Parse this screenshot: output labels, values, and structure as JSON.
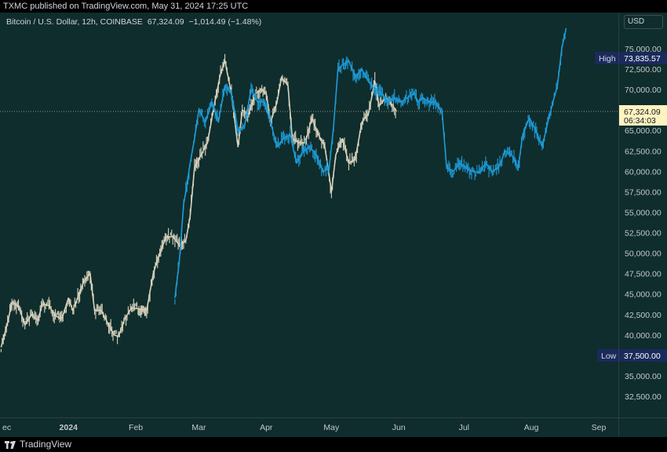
{
  "header": {
    "published": "TXMC published on TradingView.com, May 31, 2024 17:25 UTC"
  },
  "legend": {
    "symbol": "Bitcoin / U.S. Dollar, 12h, COINBASE",
    "last": "67,324.09",
    "change": "−1,014.49 (−1.48%)"
  },
  "currency": "USD",
  "footer": {
    "brand": "TradingView"
  },
  "colors": {
    "background": "#0f2d2c",
    "price_series": "#d8d2bd",
    "overlay_series": "#1e9bd7",
    "axis_badge": "#1a2a5c",
    "last_price_badge": "#fff3c0"
  },
  "chart_data": {
    "type": "line",
    "ylim": [
      30000,
      77500
    ],
    "y_scale": "linear",
    "grid": false,
    "y_ticks": [
      "75,000.00",
      "72,500.00",
      "70,000.00",
      "67,500.00",
      "65,000.00",
      "62,500.00",
      "60,000.00",
      "57,500.00",
      "55,000.00",
      "52,500.00",
      "50,000.00",
      "47,500.00",
      "45,000.00",
      "42,500.00",
      "40,000.00",
      "37,500.00",
      "35,000.00",
      "32,500.00"
    ],
    "x_ticks": [
      {
        "label": "ec",
        "date": "2023-12-01"
      },
      {
        "label": "2024",
        "date": "2024-01-01",
        "bold": true
      },
      {
        "label": "Feb",
        "date": "2024-02-01"
      },
      {
        "label": "Mar",
        "date": "2024-03-01"
      },
      {
        "label": "Apr",
        "date": "2024-04-01"
      },
      {
        "label": "May",
        "date": "2024-05-01"
      },
      {
        "label": "Jun",
        "date": "2024-06-01"
      },
      {
        "label": "Jul",
        "date": "2024-07-01"
      },
      {
        "label": "Aug",
        "date": "2024-08-01"
      },
      {
        "label": "Sep",
        "date": "2024-09-01"
      }
    ],
    "markers": {
      "high": {
        "label": "High",
        "value": "73,835.57"
      },
      "low": {
        "label": "Low",
        "value": "37,500.00"
      },
      "last": {
        "value": "67,324.09",
        "countdown": "06:34:03"
      }
    },
    "series": [
      {
        "role": "price",
        "points": [
          [
            "2023-12-01",
            38500
          ],
          [
            "2023-12-04",
            41500
          ],
          [
            "2023-12-06",
            44000
          ],
          [
            "2023-12-09",
            43500
          ],
          [
            "2023-12-12",
            41200
          ],
          [
            "2023-12-15",
            42500
          ],
          [
            "2023-12-18",
            41800
          ],
          [
            "2023-12-20",
            43800
          ],
          [
            "2023-12-23",
            43600
          ],
          [
            "2023-12-26",
            42300
          ],
          [
            "2023-12-29",
            42000
          ],
          [
            "2024-01-01",
            44500
          ],
          [
            "2024-01-03",
            43000
          ],
          [
            "2024-01-08",
            46500
          ],
          [
            "2024-01-11",
            47500
          ],
          [
            "2024-01-13",
            43000
          ],
          [
            "2024-01-16",
            43000
          ],
          [
            "2024-01-19",
            41500
          ],
          [
            "2024-01-22",
            40000
          ],
          [
            "2024-01-24",
            39800
          ],
          [
            "2024-01-27",
            42000
          ],
          [
            "2024-01-30",
            43300
          ],
          [
            "2024-02-02",
            43200
          ],
          [
            "2024-02-06",
            43000
          ],
          [
            "2024-02-09",
            47500
          ],
          [
            "2024-02-12",
            50000
          ],
          [
            "2024-02-15",
            52000
          ],
          [
            "2024-02-18",
            52000
          ],
          [
            "2024-02-21",
            51000
          ],
          [
            "2024-02-24",
            51500
          ],
          [
            "2024-02-26",
            54500
          ],
          [
            "2024-02-28",
            60500
          ],
          [
            "2024-03-02",
            62000
          ],
          [
            "2024-03-05",
            63500
          ],
          [
            "2024-03-08",
            68000
          ],
          [
            "2024-03-11",
            72000
          ],
          [
            "2024-03-13",
            73500
          ],
          [
            "2024-03-16",
            69500
          ],
          [
            "2024-03-19",
            63000
          ],
          [
            "2024-03-21",
            67500
          ],
          [
            "2024-03-24",
            67000
          ],
          [
            "2024-03-27",
            69500
          ],
          [
            "2024-03-30",
            70000
          ],
          [
            "2024-04-01",
            69500
          ],
          [
            "2024-04-03",
            66000
          ],
          [
            "2024-04-06",
            68500
          ],
          [
            "2024-04-08",
            71500
          ],
          [
            "2024-04-11",
            70500
          ],
          [
            "2024-04-13",
            64000
          ],
          [
            "2024-04-16",
            63500
          ],
          [
            "2024-04-19",
            63500
          ],
          [
            "2024-04-22",
            66500
          ],
          [
            "2024-04-25",
            64500
          ],
          [
            "2024-04-28",
            63000
          ],
          [
            "2024-05-01",
            57500
          ],
          [
            "2024-05-03",
            62000
          ],
          [
            "2024-05-06",
            64000
          ],
          [
            "2024-05-09",
            61000
          ],
          [
            "2024-05-12",
            61500
          ],
          [
            "2024-05-15",
            66000
          ],
          [
            "2024-05-18",
            67000
          ],
          [
            "2024-05-21",
            71000
          ],
          [
            "2024-05-23",
            68000
          ],
          [
            "2024-05-26",
            69000
          ],
          [
            "2024-05-28",
            68500
          ],
          [
            "2024-05-31",
            67324
          ]
        ]
      },
      {
        "role": "overlay",
        "points": [
          [
            "2024-02-19",
            44500
          ],
          [
            "2024-02-21",
            49000
          ],
          [
            "2024-02-23",
            56000
          ],
          [
            "2024-02-24",
            57500
          ],
          [
            "2024-02-26",
            61000
          ],
          [
            "2024-02-28",
            64000
          ],
          [
            "2024-03-01",
            67500
          ],
          [
            "2024-03-04",
            66000
          ],
          [
            "2024-03-07",
            68500
          ],
          [
            "2024-03-10",
            66000
          ],
          [
            "2024-03-13",
            70500
          ],
          [
            "2024-03-16",
            69500
          ],
          [
            "2024-03-19",
            65000
          ],
          [
            "2024-03-22",
            65500
          ],
          [
            "2024-03-25",
            70000
          ],
          [
            "2024-03-28",
            68500
          ],
          [
            "2024-03-31",
            68500
          ],
          [
            "2024-04-03",
            66000
          ],
          [
            "2024-04-06",
            63000
          ],
          [
            "2024-04-09",
            64000
          ],
          [
            "2024-04-12",
            64500
          ],
          [
            "2024-04-15",
            61000
          ],
          [
            "2024-04-18",
            62500
          ],
          [
            "2024-04-21",
            63000
          ],
          [
            "2024-04-24",
            62000
          ],
          [
            "2024-04-27",
            60000
          ],
          [
            "2024-04-30",
            60500
          ],
          [
            "2024-05-02",
            65500
          ],
          [
            "2024-05-04",
            72500
          ],
          [
            "2024-05-06",
            73000
          ],
          [
            "2024-05-09",
            73500
          ],
          [
            "2024-05-12",
            71500
          ],
          [
            "2024-05-15",
            72500
          ],
          [
            "2024-05-18",
            71000
          ],
          [
            "2024-05-21",
            70000
          ],
          [
            "2024-05-24",
            69500
          ],
          [
            "2024-05-27",
            68500
          ],
          [
            "2024-05-30",
            69000
          ],
          [
            "2024-06-02",
            68500
          ],
          [
            "2024-06-05",
            69000
          ],
          [
            "2024-06-08",
            69500
          ],
          [
            "2024-06-10",
            68500
          ],
          [
            "2024-06-12",
            69000
          ],
          [
            "2024-06-15",
            68500
          ],
          [
            "2024-06-18",
            68500
          ],
          [
            "2024-06-21",
            67000
          ],
          [
            "2024-06-23",
            60500
          ],
          [
            "2024-06-26",
            60000
          ],
          [
            "2024-06-29",
            61000
          ],
          [
            "2024-07-02",
            60500
          ],
          [
            "2024-07-05",
            60000
          ],
          [
            "2024-07-08",
            59800
          ],
          [
            "2024-07-11",
            61000
          ],
          [
            "2024-07-14",
            60000
          ],
          [
            "2024-07-17",
            60500
          ],
          [
            "2024-07-20",
            62500
          ],
          [
            "2024-07-23",
            62000
          ],
          [
            "2024-07-26",
            60500
          ],
          [
            "2024-07-28",
            64500
          ],
          [
            "2024-07-31",
            66500
          ],
          [
            "2024-08-03",
            65000
          ],
          [
            "2024-08-06",
            63000
          ],
          [
            "2024-08-09",
            66500
          ],
          [
            "2024-08-11",
            68500
          ],
          [
            "2024-08-13",
            70500
          ],
          [
            "2024-08-15",
            75000
          ],
          [
            "2024-08-17",
            77500
          ]
        ]
      }
    ]
  }
}
